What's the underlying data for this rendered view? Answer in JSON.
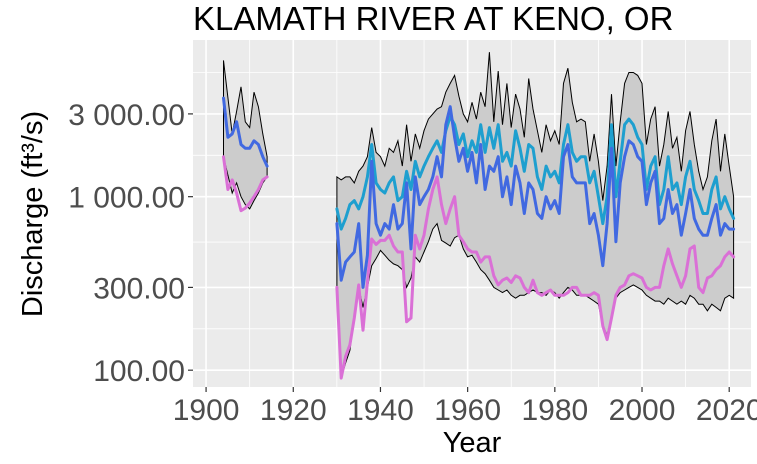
{
  "chart_data": {
    "type": "line",
    "title": "KLAMATH RIVER AT KENO, OR",
    "xlabel": "Year",
    "ylabel": "Discharge (ft³/s)",
    "xlim": [
      1897,
      2025
    ],
    "ylim": [
      80,
      8000
    ],
    "yscale": "log",
    "x_ticks": [
      1900,
      1920,
      1940,
      1960,
      1980,
      2000,
      2020
    ],
    "x_tick_labels": [
      "1900",
      "1920",
      "1940",
      "1960",
      "1980",
      "2000",
      "2020"
    ],
    "y_ticks": [
      100,
      300,
      1000,
      3000
    ],
    "y_tick_labels": [
      "100.00",
      "300.00",
      "1 000.00",
      "3 000.00"
    ],
    "grid": true,
    "legend": "none",
    "colors": {
      "panel": "#ebebeb",
      "grid": "#ffffff",
      "band_fill": "#cccccc",
      "band_stroke": "#000000",
      "high_line": "#1e9fcf",
      "mid_line": "#4169e1",
      "low_line": "#da70d6"
    },
    "band": {
      "segments": [
        {
          "x": [
            1904,
            1906,
            1907,
            1908,
            1909,
            1910,
            1911,
            1912,
            1913,
            1914
          ],
          "upper": [
            6100,
            2300,
            3100,
            4300,
            2700,
            2500,
            4000,
            3300,
            2300,
            1700
          ],
          "lower": [
            1700,
            1050,
            1200,
            1000,
            900,
            850,
            950,
            1050,
            1200,
            1300
          ]
        },
        {
          "x": [
            1930,
            1931,
            1932,
            1933,
            1934,
            1935,
            1936,
            1937,
            1938,
            1939,
            1940,
            1941,
            1942,
            1943,
            1944,
            1945,
            1946,
            1947,
            1948,
            1949,
            1950,
            1951,
            1952,
            1953,
            1954,
            1955,
            1956,
            1957,
            1958,
            1959,
            1960,
            1961,
            1962,
            1963,
            1964,
            1965,
            1966,
            1967,
            1968,
            1969,
            1970,
            1971,
            1972,
            1973,
            1974,
            1975,
            1976,
            1977,
            1978,
            1979,
            1980,
            1981,
            1982,
            1983,
            1984,
            1985,
            1986,
            1987,
            1988,
            1989,
            1990,
            1991,
            1992,
            1993,
            1994,
            1995,
            1996,
            1997,
            1998,
            1999,
            2000,
            2001,
            2002,
            2003,
            2004,
            2005,
            2006,
            2007,
            2008,
            2009,
            2010,
            2011,
            2012,
            2013,
            2014,
            2015,
            2016,
            2017,
            2018,
            2019,
            2020,
            2021
          ],
          "upper": [
            1300,
            1250,
            1300,
            1300,
            1200,
            1400,
            1500,
            1700,
            2500,
            1800,
            1700,
            1500,
            1900,
            1800,
            1300,
            1500,
            2100,
            1600,
            2300,
            1900,
            2400,
            2800,
            3000,
            3200,
            3300,
            3600,
            4000,
            3800,
            2400,
            3000,
            2700,
            3100,
            2800,
            4000,
            3300,
            6500,
            2700,
            4500,
            2600,
            3100,
            2500,
            3900,
            3200,
            2200,
            3400,
            3200,
            2400,
            1800,
            2600,
            2100,
            2400,
            2000,
            3400,
            4600,
            3500,
            2700,
            2800,
            2700,
            1600,
            2300,
            1600,
            950,
            1500,
            3900,
            1500,
            2700,
            4500,
            5200,
            5200,
            5000,
            4500,
            2000,
            2800,
            3300,
            1500,
            2000,
            3100,
            1900,
            2200,
            1400,
            2400,
            3100,
            2000,
            1400,
            1100,
            1300,
            2100,
            2800,
            1400,
            2300,
            1500,
            1000
          ],
          "upper_spikes": [
            [
              1944,
              2100
            ],
            [
              1946,
              2600
            ],
            [
              1955,
              4000
            ],
            [
              1956,
              4500
            ],
            [
              1957,
              5000
            ],
            [
              1958,
              3800
            ],
            [
              1961,
              3500
            ],
            [
              1965,
              6800
            ],
            [
              1967,
              5300
            ],
            [
              1969,
              4500
            ],
            [
              1974,
              4800
            ],
            [
              1982,
              4500
            ],
            [
              1983,
              5500
            ]
          ],
          "lower": [
            300,
            90,
            110,
            130,
            200,
            300,
            230,
            300,
            400,
            440,
            490,
            460,
            430,
            410,
            400,
            380,
            300,
            340,
            450,
            420,
            480,
            550,
            650,
            700,
            560,
            540,
            520,
            580,
            600,
            500,
            450,
            460,
            420,
            380,
            360,
            330,
            300,
            290,
            280,
            290,
            270,
            260,
            270,
            270,
            280,
            290,
            280,
            280,
            270,
            290,
            280,
            260,
            280,
            300,
            290,
            270,
            270,
            270,
            260,
            250,
            240,
            180,
            160,
            200,
            260,
            280,
            290,
            300,
            310,
            300,
            290,
            270,
            260,
            250,
            250,
            240,
            260,
            250,
            240,
            250,
            240,
            270,
            260,
            240,
            240,
            220,
            240,
            230,
            220,
            260,
            270,
            260
          ]
        }
      ]
    },
    "series": [
      {
        "color": "#1e9fcf",
        "segments": [
          {
            "x": [
              1930,
              1931,
              1932,
              1933,
              1934,
              1935,
              1936,
              1937,
              1938,
              1939,
              1940,
              1941,
              1942,
              1943,
              1944,
              1945,
              1946,
              1947,
              1948,
              1949,
              1950,
              1951,
              1952,
              1953,
              1954,
              1955,
              1956,
              1957,
              1958,
              1959,
              1960,
              1961,
              1962,
              1963,
              1964,
              1965,
              1966,
              1967,
              1968,
              1969,
              1970,
              1971,
              1972,
              1973,
              1974,
              1975,
              1976,
              1977,
              1978,
              1979,
              1980,
              1981,
              1982,
              1983,
              1984,
              1985,
              1986,
              1987,
              1988,
              1989,
              1990,
              1991,
              1992,
              1993,
              1994,
              1995,
              1996,
              1997,
              1998,
              1999,
              2000,
              2001,
              2002,
              2003,
              2004,
              2005,
              2006,
              2007,
              2008,
              2009,
              2010,
              2011,
              2012,
              2013,
              2014,
              2015,
              2016,
              2017,
              2018,
              2019,
              2020,
              2021
            ],
            "y": [
              850,
              650,
              750,
              900,
              950,
              850,
              1000,
              1300,
              2000,
              1200,
              1100,
              1050,
              1200,
              1300,
              950,
              1000,
              1400,
              1100,
              1600,
              1300,
              1500,
              1700,
              1900,
              2100,
              1800,
              2400,
              2900,
              2600,
              2000,
              2300,
              1700,
              2100,
              1800,
              2600,
              1800,
              2500,
              1900,
              2600,
              1600,
              1800,
              1500,
              2400,
              1900,
              1400,
              2000,
              1900,
              1300,
              1100,
              1500,
              1300,
              1400,
              1200,
              2000,
              2600,
              1800,
              1600,
              1700,
              1700,
              1200,
              1400,
              1000,
              700,
              1000,
              2600,
              1000,
              1600,
              2600,
              2800,
              2600,
              2200,
              2000,
              1100,
              1500,
              1700,
              900,
              1100,
              1700,
              1100,
              1200,
              900,
              1300,
              1600,
              1100,
              950,
              800,
              800,
              1100,
              1300,
              850,
              1000,
              850,
              750
            ]
          }
        ]
      },
      {
        "color": "#4169e1",
        "segments": [
          {
            "x": [
              1904,
              1905,
              1906,
              1907,
              1908,
              1909,
              1910,
              1911,
              1912,
              1913,
              1914
            ],
            "y": [
              3700,
              2200,
              2300,
              2700,
              2000,
              1900,
              1900,
              2100,
              2000,
              1700,
              1500
            ]
          },
          {
            "x": [
              1930,
              1931,
              1932,
              1933,
              1934,
              1935,
              1936,
              1937,
              1938,
              1939,
              1940,
              1941,
              1942,
              1943,
              1944,
              1945,
              1946,
              1947,
              1948,
              1949,
              1950,
              1951,
              1952,
              1953,
              1954,
              1955,
              1956,
              1957,
              1958,
              1959,
              1960,
              1961,
              1962,
              1963,
              1964,
              1965,
              1966,
              1967,
              1968,
              1969,
              1970,
              1971,
              1972,
              1973,
              1974,
              1975,
              1976,
              1977,
              1978,
              1979,
              1980,
              1981,
              1982,
              1983,
              1984,
              1985,
              1986,
              1987,
              1988,
              1989,
              1990,
              1991,
              1992,
              1993,
              1994,
              1995,
              1996,
              1997,
              1998,
              1999,
              2000,
              2001,
              2002,
              2003,
              2004,
              2005,
              2006,
              2007,
              2008,
              2009,
              2010,
              2011,
              2012,
              2013,
              2014,
              2015,
              2016,
              2017,
              2018,
              2019,
              2020,
              2021
            ],
            "y": [
              700,
              330,
              420,
              450,
              480,
              700,
              300,
              460,
              1600,
              700,
              600,
              700,
              650,
              900,
              650,
              700,
              1200,
              500,
              1300,
              900,
              1000,
              1100,
              1300,
              1700,
              1300,
              2600,
              3300,
              2200,
              1600,
              1900,
              1400,
              1800,
              1200,
              2000,
              1100,
              1500,
              1400,
              1700,
              1000,
              1300,
              900,
              1500,
              1200,
              800,
              1200,
              1100,
              800,
              750,
              1000,
              850,
              950,
              800,
              1700,
              2000,
              1300,
              1200,
              1200,
              1200,
              700,
              800,
              600,
              400,
              700,
              1900,
              550,
              1200,
              1700,
              2100,
              2000,
              1700,
              1600,
              900,
              1200,
              1400,
              700,
              750,
              1100,
              800,
              900,
              600,
              800,
              1100,
              750,
              650,
              600,
              600,
              750,
              900,
              600,
              700,
              650,
              650
            ]
          }
        ]
      },
      {
        "color": "#da70d6",
        "segments": [
          {
            "x": [
              1904,
              1905,
              1906,
              1907,
              1908,
              1909,
              1910,
              1911,
              1912,
              1913,
              1914
            ],
            "y": [
              1700,
              1100,
              1250,
              1050,
              830,
              860,
              920,
              1000,
              1100,
              1250,
              1300
            ]
          },
          {
            "x": [
              1930,
              1931,
              1932,
              1933,
              1934,
              1935,
              1936,
              1937,
              1938,
              1939,
              1940,
              1941,
              1942,
              1943,
              1944,
              1945,
              1946,
              1947,
              1948,
              1949,
              1950,
              1951,
              1952,
              1953,
              1954,
              1955,
              1956,
              1957,
              1958,
              1959,
              1960,
              1961,
              1962,
              1963,
              1964,
              1965,
              1966,
              1967,
              1968,
              1969,
              1970,
              1971,
              1972,
              1973,
              1974,
              1975,
              1976,
              1977,
              1978,
              1979,
              1980,
              1981,
              1982,
              1983,
              1984,
              1985,
              1986,
              1987,
              1988,
              1989,
              1990,
              1991,
              1992,
              1993,
              1994,
              1995,
              1996,
              1997,
              1998,
              1999,
              2000,
              2001,
              2002,
              2003,
              2004,
              2005,
              2006,
              2007,
              2008,
              2009,
              2010,
              2011,
              2012,
              2013,
              2014,
              2015,
              2016,
              2017,
              2018,
              2019,
              2020,
              2021
            ],
            "y": [
              300,
              90,
              120,
              140,
              200,
              310,
              170,
              320,
              570,
              530,
              560,
              560,
              600,
              520,
              480,
              480,
              190,
              200,
              600,
              500,
              600,
              850,
              1100,
              1300,
              900,
              700,
              850,
              1000,
              600,
              550,
              500,
              480,
              480,
              420,
              450,
              450,
              350,
              310,
              330,
              340,
              320,
              350,
              340,
              300,
              280,
              330,
              280,
              270,
              280,
              290,
              270,
              270,
              270,
              280,
              300,
              300,
              270,
              270,
              270,
              280,
              270,
              180,
              150,
              200,
              270,
              300,
              310,
              350,
              360,
              350,
              340,
              300,
              290,
              300,
              300,
              400,
              500,
              410,
              350,
              300,
              350,
              500,
              520,
              300,
              280,
              340,
              350,
              380,
              400,
              450,
              480,
              450
            ]
          }
        ]
      }
    ]
  }
}
